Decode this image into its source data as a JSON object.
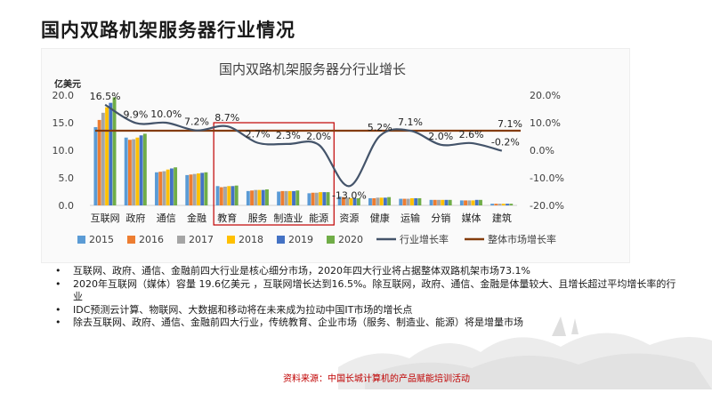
{
  "slide": {
    "title": "国内双路机架服务器行业情况",
    "source": "资料来源：中国长城计算机的产品赋能培训活动"
  },
  "chart_data": {
    "type": "bar+line",
    "title": "国内双路机架服务器分行业增长",
    "y_left_unit": "亿美元",
    "y_left_ticks": [
      "20.0",
      "15.0",
      "10.0",
      "5.0",
      "0.0"
    ],
    "y_right_ticks": [
      "20.0%",
      "10.0%",
      "0.0%",
      "-10.0%",
      "-20.0%"
    ],
    "ylim_left": [
      0,
      20
    ],
    "ylim_right": [
      -20,
      20
    ],
    "categories": [
      "互联网",
      "政府",
      "通信",
      "金融",
      "教育",
      "服务",
      "制造业",
      "能源",
      "资源",
      "健康",
      "运输",
      "分销",
      "媒体",
      "建筑"
    ],
    "bar_series": [
      {
        "name": "2015",
        "color": "#5b9bd5",
        "values": [
          14.2,
          12.3,
          6.0,
          5.5,
          3.5,
          2.6,
          2.5,
          2.2,
          1.6,
          1.3,
          1.2,
          1.0,
          0.9,
          0.3
        ]
      },
      {
        "name": "2016",
        "color": "#ed7d31",
        "values": [
          15.5,
          11.9,
          6.1,
          5.6,
          3.3,
          2.7,
          2.6,
          2.3,
          1.5,
          1.3,
          1.2,
          1.0,
          0.9,
          0.3
        ]
      },
      {
        "name": "2017",
        "color": "#a5a5a5",
        "values": [
          16.8,
          12.0,
          6.2,
          5.7,
          3.4,
          2.8,
          2.6,
          2.3,
          1.4,
          1.4,
          1.2,
          1.0,
          0.9,
          0.3
        ]
      },
      {
        "name": "2018",
        "color": "#ffc000",
        "values": [
          17.8,
          12.3,
          6.5,
          5.8,
          3.5,
          2.8,
          2.6,
          2.4,
          1.3,
          1.4,
          1.3,
          1.0,
          0.9,
          0.3
        ]
      },
      {
        "name": "2019",
        "color": "#4472c4",
        "values": [
          18.6,
          12.7,
          6.7,
          5.9,
          3.5,
          2.8,
          2.6,
          2.4,
          1.3,
          1.4,
          1.3,
          1.0,
          1.0,
          0.3
        ]
      },
      {
        "name": "2020",
        "color": "#70ad47",
        "values": [
          19.6,
          13.0,
          6.9,
          6.0,
          3.6,
          2.9,
          2.7,
          2.4,
          1.3,
          1.5,
          1.3,
          1.0,
          1.0,
          0.3
        ]
      }
    ],
    "line_series": [
      {
        "name": "行业增长率",
        "color": "#44546a",
        "values": [
          16.5,
          9.9,
          10.0,
          7.2,
          8.7,
          2.7,
          2.3,
          2.0,
          -13.0,
          5.2,
          7.1,
          2.0,
          2.6,
          -0.2
        ]
      },
      {
        "name": "整体市场增长率",
        "color": "#843c0c",
        "values": [
          7.1,
          7.1,
          7.1,
          7.1,
          7.1,
          7.1,
          7.1,
          7.1,
          7.1,
          7.1,
          7.1,
          7.1,
          7.1,
          7.1
        ]
      }
    ],
    "data_labels": [
      "16.5%",
      "9.9%",
      "10.0%",
      "7.2%",
      "8.7%",
      "2.7%",
      "2.3%",
      "2.0%",
      "-13.0%",
      "5.2%",
      "7.1%",
      "2.0%",
      "2.6%",
      "-0.2%"
    ],
    "overall_label": "7.1%",
    "highlight_box": {
      "from_category": "教育",
      "to_category": "能源",
      "color": "#c00000"
    },
    "grid": false,
    "legend_position": "bottom"
  },
  "bullets": [
    "互联网、政府、通信、金融前四大行业是核心细分市场，2020年四大行业将占据整体双路机架市场73.1%",
    "2020年互联网（媒体）容量 19.6亿美元 ，互联网增长达到16.5%。除互联网，政府、通信、金融是体量较大、且增长超过平均增长率的行业",
    "IDC预测云计算、物联网、大数据和移动将在未来成为拉动中国IT市场的增长点",
    "除去互联网、政府、通信、金融前四大行业，传统教育、企业市场（服务、制造业、能源）将是增量市场"
  ],
  "bullet_symbol": "•"
}
